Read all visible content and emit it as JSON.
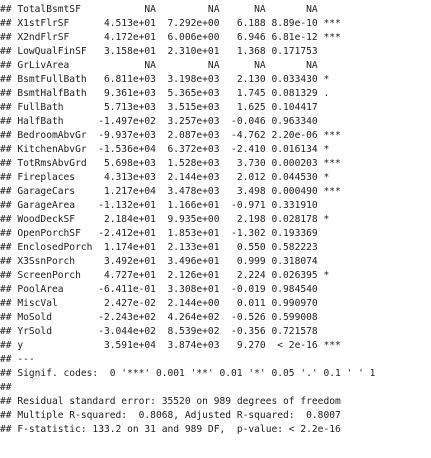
{
  "output": {
    "lines": [
      "## TotalBsmtSF           NA         NA      NA       NA",
      "## X1stFlrSF      4.513e+01  7.292e+00   6.188 8.89e-10 ***",
      "## X2ndFlrSF      4.172e+01  6.006e+00   6.946 6.81e-12 ***",
      "## LowQualFinSF   3.158e+01  2.310e+01   1.368 0.171753",
      "## GrLivArea             NA         NA      NA       NA",
      "## BsmtFullBath   6.811e+03  3.198e+03   2.130 0.033430 *",
      "## BsmtHalfBath   9.361e+03  5.365e+03   1.745 0.081329 .",
      "## FullBath       5.713e+03  3.515e+03   1.625 0.104417",
      "## HalfBath      -1.497e+02  3.257e+03  -0.046 0.963340",
      "## BedroomAbvGr  -9.937e+03  2.087e+03  -4.762 2.20e-06 ***",
      "## KitchenAbvGr  -1.536e+04  6.372e+03  -2.410 0.016134 *",
      "## TotRmsAbvGrd   5.698e+03  1.528e+03   3.730 0.000203 ***",
      "## Fireplaces     4.313e+03  2.144e+03   2.012 0.044530 *",
      "## GarageCars     1.217e+04  3.478e+03   3.498 0.000490 ***",
      "## GarageArea    -1.132e+01  1.166e+01  -0.971 0.331910",
      "## WoodDeckSF     2.184e+01  9.935e+00   2.198 0.028178 *",
      "## OpenPorchSF   -2.412e+01  1.853e+01  -1.302 0.193369",
      "## EnclosedPorch  1.174e+01  2.133e+01   0.550 0.582223",
      "## X3SsnPorch     3.492e+01  3.496e+01   0.999 0.318074",
      "## ScreenPorch    4.727e+01  2.126e+01   2.224 0.026395 *",
      "## PoolArea      -6.411e-01  3.308e+01  -0.019 0.984540",
      "## MiscVal        2.427e-02  2.144e+00   0.011 0.990970",
      "## MoSold        -2.243e+02  4.264e+02  -0.526 0.599008",
      "## YrSold        -3.044e+02  8.539e+02  -0.356 0.721578",
      "## y              3.591e+04  3.874e+03   9.270  < 2e-16 ***",
      "## ---",
      "## Signif. codes:  0 '***' 0.001 '**' 0.01 '*' 0.05 '.' 0.1 ' ' 1",
      "##",
      "## Residual standard error: 35520 on 989 degrees of freedom",
      "## Multiple R-squared:  0.8068, Adjusted R-squared:  0.8007",
      "## F-statistic: 133.2 on 31 and 989 DF,  p-value: < 2.2e-16"
    ]
  }
}
